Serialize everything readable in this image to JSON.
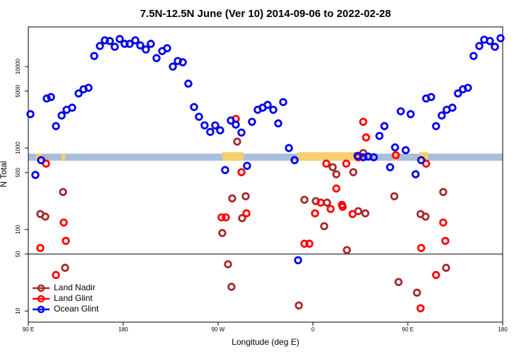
{
  "chart_data": {
    "type": "scatter",
    "title": "7.5N-12.5N June (Ver 10)   2014-09-06 to 2022-02-28",
    "x_label": "Longitude (deg E)",
    "y_label": "N Total",
    "xlim": [
      90,
      540
    ],
    "ylim": [
      7.3,
      30700
    ],
    "log_y": true,
    "xticks": [
      {
        "value": 90,
        "label": "90 E"
      },
      {
        "value": 180,
        "label": "180"
      },
      {
        "value": 270,
        "label": "90 W"
      },
      {
        "value": 360,
        "label": "0"
      },
      {
        "value": 450,
        "label": "90 E"
      },
      {
        "value": 540,
        "label": "180"
      }
    ],
    "yticks": [
      10,
      50,
      100,
      500,
      1000,
      5000,
      10000
    ],
    "hline": 50,
    "legend": "bottom-left",
    "series": [
      {
        "name": "Land Nadir",
        "color": "#a52a2a",
        "x": [
          101.4,
          106.1,
          122.9,
          124.9,
          274.0,
          283.4,
          288.1,
          292.8,
          296.2,
          279.4,
          282.7,
          346.6,
          351.9,
          362.7,
          370.7,
          373.4,
          378.8,
          382.2,
          392.2,
          398.3,
          403.0,
          407.7,
          409.7,
          437.2,
          441.2,
          458.7,
          462.1,
          466.8,
          483.6,
          486.3
        ],
        "values": [
          155,
          144,
          289,
          33.9,
          90.6,
          241,
          1200,
          138,
          256,
          37.5,
          19.8,
          11.7,
          232,
          223,
          110,
          214,
          582,
          477,
          56,
          506,
          168,
          869,
          158,
          256,
          22.7,
          16.8,
          155,
          144,
          289,
          33.9
        ]
      },
      {
        "name": "Land Glint",
        "color": "#ff0000",
        "x": [
          101.4,
          106.8,
          116.2,
          123.6,
          125.6,
          273.3,
          277.4,
          286.8,
          292.2,
          296.9,
          351.9,
          356.6,
          362.0,
          367.4,
          372.7,
          376.8,
          382.2,
          387.5,
          388.2,
          391.6,
          397.6,
          403.0,
          407.7,
          410.4,
          438.6,
          462.1,
          462.7,
          467.4,
          476.8,
          483.6,
          485.6
        ],
        "values": [
          59.4,
          644,
          27.7,
          122,
          72.6,
          141,
          141,
          2280,
          506,
          158,
          67,
          67,
          158,
          214,
          644,
          179,
          319,
          201,
          190,
          644,
          155,
          771,
          2100,
          1350,
          818,
          10.8,
          59.4,
          644,
          27.7,
          122,
          72.6
        ]
      },
      {
        "name": "Ocean Glint",
        "color": "#0000ee",
        "x": [
          92.0,
          96.7,
          102.1,
          107.5,
          111.5,
          116.2,
          121.6,
          126.3,
          131.6,
          137.7,
          142.4,
          147.1,
          152.5,
          157.9,
          162.6,
          167.3,
          172.0,
          176.7,
          181.4,
          186.1,
          191.5,
          196.2,
          201.5,
          206.2,
          211.6,
          217.0,
          221.7,
          227.1,
          231.8,
          236.5,
          241.8,
          247.2,
          251.9,
          257.2,
          262.6,
          267.3,
          272.0,
          276.7,
          282.1,
          286.8,
          292.2,
          297.5,
          302.2,
          307.6,
          312.3,
          317.0,
          322.4,
          327.1,
          331.8,
          337.2,
          342.6,
          345.9,
          402.3,
          407.7,
          412.4,
          417.7,
          423.1,
          427.8,
          433.2,
          437.9,
          443.3,
          448.0,
          452.7,
          457.4,
          462.7,
          467.4,
          472.1,
          476.8,
          482.2,
          486.9,
          492.3,
          497.6,
          502.3,
          507.0,
          512.4,
          517.8,
          522.5,
          527.9,
          532.6,
          538.0
        ],
        "values": [
          2610,
          468,
          711,
          4060,
          4230,
          1860,
          2510,
          2950,
          3130,
          4680,
          5270,
          5490,
          13500,
          17900,
          21000,
          20600,
          17500,
          21800,
          19000,
          19000,
          21000,
          18200,
          16200,
          19000,
          12700,
          15500,
          16800,
          10000,
          11700,
          11300,
          6180,
          3190,
          2420,
          1900,
          1580,
          1900,
          1650,
          537,
          2180,
          1940,
          1550,
          606,
          2100,
          2950,
          3130,
          3390,
          2950,
          2010,
          3670,
          1000,
          711,
          42,
          802,
          771,
          787,
          771,
          1410,
          1860,
          582,
          1020,
          2830,
          942,
          2610,
          477,
          711,
          4060,
          4230,
          1860,
          2510,
          2950,
          3130,
          4680,
          5270,
          5490,
          13500,
          17900,
          21400,
          20600,
          17500,
          22300
        ]
      }
    ]
  }
}
